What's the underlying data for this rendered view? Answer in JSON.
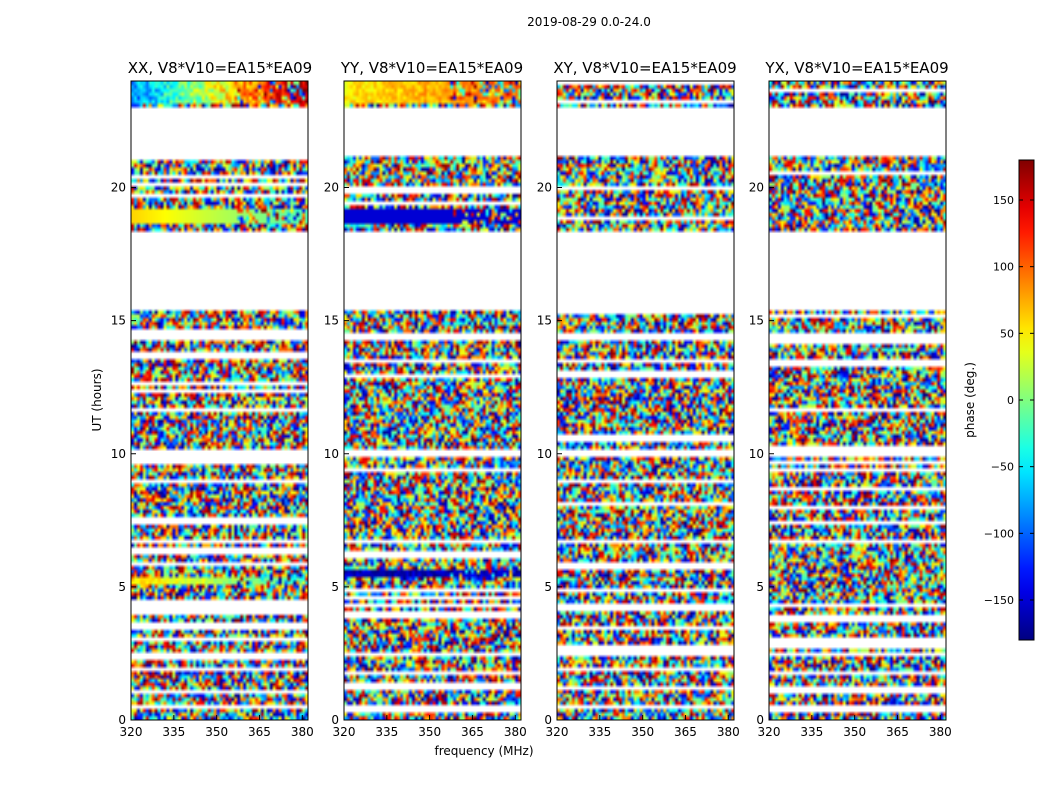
{
  "chart_data": {
    "type": "heatmap",
    "suptitle": "2019-08-29 0.0-24.0",
    "xlabel": "frequency (MHz)",
    "ylabel": "UT (hours)",
    "xlim": [
      320,
      382
    ],
    "ylim": [
      0,
      24
    ],
    "x_ticks": [
      320,
      335,
      350,
      365,
      380
    ],
    "y_ticks": [
      0,
      5,
      10,
      15,
      20
    ],
    "colormap": "jet",
    "colorbar": {
      "label": "phase (deg.)",
      "range": [
        -180,
        180
      ],
      "ticks": [
        150,
        100,
        50,
        0,
        -50,
        -100,
        -150
      ],
      "tick_labels": [
        "150",
        "100",
        "50",
        "0",
        "−50",
        "−100",
        "−150"
      ]
    },
    "panels": [
      {
        "title": "XX, V8*V10=EA15*EA09",
        "phase_bands": [
          {
            "ut": [
              18.7,
              19.2
            ],
            "phase_start": 60,
            "phase_end": -20,
            "phase_jitter": 0
          },
          {
            "ut": [
              23.2,
              24.0
            ],
            "phase_start": -90,
            "phase_end": 170,
            "phase_jitter": 40
          },
          {
            "ut": [
              5.1,
              5.3
            ],
            "phase_start": 60,
            "phase_end": -30,
            "phase_jitter": 20
          }
        ]
      },
      {
        "title": "YY, V8*V10=EA15*EA09",
        "phase_bands": [
          {
            "ut": [
              18.7,
              19.2
            ],
            "phase_start": -150,
            "phase_end": -150,
            "phase_jitter": 0
          },
          {
            "ut": [
              23.2,
              24.0
            ],
            "phase_start": 50,
            "phase_end": 100,
            "phase_jitter": 20
          },
          {
            "ut": [
              5.35,
              5.6
            ],
            "phase_start": -160,
            "phase_end": -160,
            "phase_jitter": 20
          }
        ]
      },
      {
        "title": "XY, V8*V10=EA15*EA09",
        "phase_bands": []
      },
      {
        "title": "YX, V8*V10=EA15*EA09",
        "phase_bands": []
      }
    ],
    "data_gaps_ut": [
      [
        21.2,
        23.0
      ],
      [
        18.1,
        18.4
      ],
      [
        15.4,
        18.0
      ],
      [
        14.2,
        14.6
      ],
      [
        9.9,
        10.1
      ],
      [
        6.6,
        6.8
      ],
      [
        4.2,
        4.4
      ],
      [
        2.4,
        2.6
      ],
      [
        0.4,
        0.6
      ]
    ],
    "data": "per-pixel noisy visibility phase, approximately uniform in [-180, 180] outside the listed bands"
  }
}
